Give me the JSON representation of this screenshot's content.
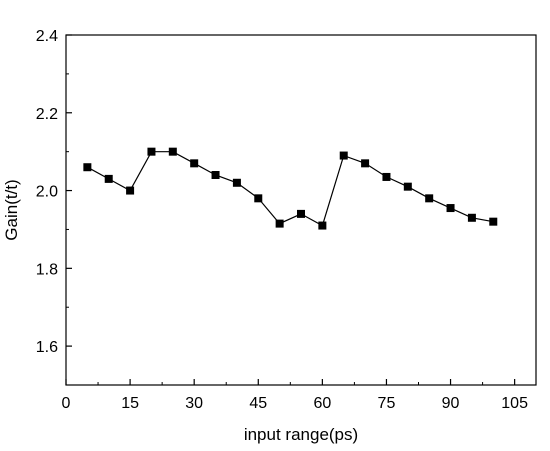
{
  "chart_data": {
    "type": "line",
    "title": "",
    "xlabel": "input range(ps)",
    "ylabel": "Gain(t/t)",
    "xlim": [
      0,
      110
    ],
    "ylim": [
      1.5,
      2.4
    ],
    "xticks": [
      0,
      15,
      30,
      45,
      60,
      75,
      90,
      105
    ],
    "xtick_labels": [
      "0",
      "15",
      "30",
      "45",
      "60",
      "75",
      "90",
      "105"
    ],
    "yticks": [
      1.6,
      1.8,
      2.0,
      2.2,
      2.4
    ],
    "ytick_labels": [
      "1.6",
      "1.8",
      "2.0",
      "2.2",
      "2.4"
    ],
    "grid": false,
    "legend": "none",
    "series": [
      {
        "marker": "square",
        "color": "#000000",
        "x": [
          5,
          10,
          15,
          20,
          25,
          30,
          35,
          40,
          45,
          50,
          55,
          60,
          65,
          70,
          75,
          80,
          85,
          90,
          95,
          100
        ],
        "y": [
          2.06,
          2.03,
          2.0,
          2.1,
          2.1,
          2.07,
          2.04,
          2.02,
          1.98,
          1.915,
          1.94,
          1.91,
          2.09,
          2.07,
          2.035,
          2.01,
          1.98,
          1.955,
          1.93,
          1.92
        ]
      }
    ]
  }
}
